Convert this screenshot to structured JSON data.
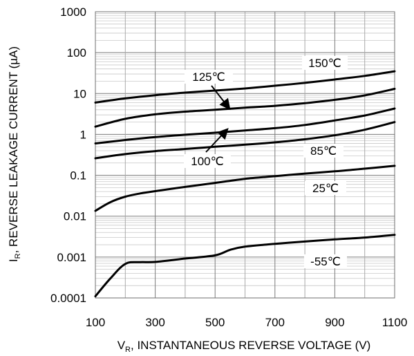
{
  "chart_data": {
    "type": "line",
    "x_scale": "linear",
    "y_scale": "log",
    "xlim": [
      100,
      1100
    ],
    "ylim": [
      0.0001,
      1000
    ],
    "grid": true,
    "x_ticks": [
      "100",
      "300",
      "500",
      "700",
      "900",
      "1100"
    ],
    "y_ticks": [
      "0.0001",
      "0.001",
      "0.01",
      "0.1",
      "1",
      "10",
      "100",
      "1000"
    ],
    "xlabel": {
      "prefix": "V",
      "sub": "R",
      "rest": ", INSTANTANEOUS REVERSE VOLTAGE (V)"
    },
    "ylabel": {
      "prefix": "I",
      "sub": "R",
      "rest": ",  REVERSE LEAKAGE CURRENT (µA)"
    },
    "series": [
      {
        "name": "150℃",
        "x": [
          100,
          200,
          300,
          400,
          500,
          600,
          700,
          800,
          900,
          1000,
          1100
        ],
        "y": [
          6,
          7.6,
          9.1,
          10.5,
          11.8,
          13.3,
          15.5,
          18.2,
          22,
          27,
          35
        ]
      },
      {
        "name": "125℃",
        "x": [
          100,
          200,
          300,
          400,
          500,
          600,
          700,
          800,
          900,
          1000,
          1100
        ],
        "y": [
          1.55,
          2.4,
          3.1,
          3.6,
          4,
          4.5,
          5,
          5.8,
          7,
          9,
          13
        ]
      },
      {
        "name": "100℃",
        "x": [
          100,
          200,
          300,
          400,
          500,
          600,
          700,
          800,
          900,
          1000,
          1100
        ],
        "y": [
          0.6,
          0.73,
          0.86,
          0.98,
          1.1,
          1.25,
          1.42,
          1.7,
          2.2,
          2.9,
          4.3
        ]
      },
      {
        "name": "85℃",
        "x": [
          100,
          200,
          300,
          400,
          500,
          600,
          700,
          800,
          900,
          1000,
          1100
        ],
        "y": [
          0.26,
          0.33,
          0.39,
          0.44,
          0.5,
          0.56,
          0.64,
          0.76,
          0.95,
          1.3,
          2
        ]
      },
      {
        "name": "25℃",
        "x": [
          100,
          150,
          200,
          250,
          300,
          400,
          500,
          600,
          700,
          800,
          900,
          1000,
          1100
        ],
        "y": [
          0.0135,
          0.022,
          0.03,
          0.036,
          0.041,
          0.052,
          0.065,
          0.082,
          0.095,
          0.11,
          0.125,
          0.145,
          0.17
        ]
      },
      {
        "name": "-55℃",
        "x": [
          100,
          150,
          200,
          250,
          300,
          400,
          500,
          550,
          600,
          700,
          800,
          900,
          1000,
          1100
        ],
        "y": [
          0.00011,
          0.0003,
          0.00068,
          0.00075,
          0.00076,
          0.00092,
          0.0011,
          0.0015,
          0.0018,
          0.0021,
          0.0024,
          0.0027,
          0.003,
          0.0035
        ]
      }
    ],
    "labels": [
      {
        "text": "150℃"
      },
      {
        "text": "125℃"
      },
      {
        "text": "100℃"
      },
      {
        "text": "85℃"
      },
      {
        "text": "25℃"
      },
      {
        "text": "-55℃"
      }
    ]
  }
}
